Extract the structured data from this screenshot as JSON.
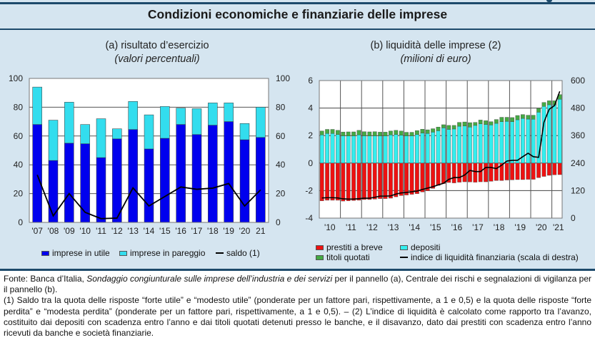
{
  "header": {
    "title": "Condizioni economiche e finanziarie delle imprese"
  },
  "colors": {
    "panel_bg": "#d5e5f0",
    "rule": "#1d4a6b",
    "utile": "#0000ee",
    "pareggio": "#33ddee",
    "prestiti": "#ee1111",
    "depositi": "#33eeee",
    "titoli": "#44aa44",
    "line": "#000000"
  },
  "chart_data": [
    {
      "id": "a",
      "type": "bar",
      "title": "(a) risultato d’esercizio",
      "subtitle": "(valori percentuali)",
      "categories": [
        "'07",
        "'08",
        "'09",
        "'10",
        "'11",
        "'12",
        "'13",
        "'14",
        "'15",
        "'16",
        "'17",
        "'18",
        "'19",
        "'20",
        "21"
      ],
      "stacked": true,
      "series": [
        {
          "name": "imprese in utile",
          "kind": "bar",
          "values": [
            68,
            43,
            55,
            54.6,
            45,
            58,
            64.5,
            51,
            58.4,
            68,
            61,
            67.5,
            70,
            57.4,
            59
          ]
        },
        {
          "name": "imprese in pareggio",
          "kind": "bar",
          "values": [
            26,
            28,
            28.5,
            13.4,
            27,
            7,
            19.5,
            23.7,
            22.1,
            11.4,
            18,
            15.5,
            13,
            11.3,
            21
          ]
        },
        {
          "name": "saldo (1)",
          "kind": "line",
          "values": [
            33,
            4.5,
            20,
            7,
            2.6,
            3,
            24,
            11.4,
            18,
            24.6,
            23,
            23.8,
            27,
            11.4,
            22.6
          ]
        }
      ],
      "ylim": [
        0,
        100
      ],
      "yticks": [
        0,
        20,
        40,
        60,
        80,
        100
      ],
      "y2lim": [
        0,
        100
      ],
      "y2ticks": [
        0,
        20,
        40,
        60,
        80,
        100
      ],
      "grid": true,
      "legend": "bottom",
      "legend_labels": [
        "imprese in utile",
        "imprese in pareggio",
        "saldo (1)"
      ]
    },
    {
      "id": "b",
      "type": "bar",
      "title": "(b) liquidità delle imprese (2)",
      "subtitle": "(milioni di euro)",
      "frequency": "quarterly",
      "period_start": "2010Q1",
      "period_end": "2021Q2",
      "year_labels": [
        "'10",
        "'11",
        "'12",
        "'13",
        "'14",
        "'15",
        "'16",
        "'17",
        "'18",
        "'19",
        "'20",
        "'21"
      ],
      "series": [
        {
          "name": "prestiti a breve",
          "kind": "bar",
          "axis": "left",
          "values": [
            -2.74,
            -2.7,
            -2.7,
            -2.7,
            -2.76,
            -2.74,
            -2.72,
            -2.7,
            -2.65,
            -2.65,
            -2.62,
            -2.58,
            -2.58,
            -2.55,
            -2.45,
            -2.36,
            -2.32,
            -2.27,
            -2.22,
            -2.1,
            -2.01,
            -1.84,
            -1.62,
            -1.49,
            -1.41,
            -1.44,
            -1.39,
            -1.36,
            -1.37,
            -1.39,
            -1.36,
            -1.36,
            -1.32,
            -1.27,
            -1.27,
            -1.23,
            -1.22,
            -1.2,
            -1.2,
            -1.18,
            -1.18,
            -1.06,
            -0.97,
            -0.89,
            -0.85,
            -0.84
          ]
        },
        {
          "name": "depositi",
          "kind": "bar",
          "axis": "left",
          "values": [
            2.05,
            2.15,
            2.15,
            2.08,
            1.98,
            1.97,
            1.97,
            2.05,
            1.98,
            1.97,
            1.98,
            1.97,
            1.97,
            2.05,
            2.08,
            2.03,
            1.98,
            1.98,
            2.08,
            2.18,
            2.15,
            2.25,
            2.35,
            2.56,
            2.45,
            2.48,
            2.68,
            2.7,
            2.62,
            2.74,
            2.86,
            2.81,
            2.77,
            2.89,
            3.01,
            3.03,
            3.01,
            3.15,
            3.25,
            3.2,
            3.19,
            3.7,
            4.12,
            4.24,
            4.24,
            4.64
          ]
        },
        {
          "name": "titoli quotati",
          "kind": "bar",
          "axis": "left",
          "values": [
            0.28,
            0.3,
            0.3,
            0.3,
            0.28,
            0.3,
            0.3,
            0.33,
            0.3,
            0.3,
            0.3,
            0.28,
            0.28,
            0.28,
            0.3,
            0.3,
            0.26,
            0.26,
            0.28,
            0.28,
            0.27,
            0.25,
            0.27,
            0.23,
            0.29,
            0.26,
            0.28,
            0.29,
            0.32,
            0.22,
            0.27,
            0.27,
            0.24,
            0.28,
            0.32,
            0.3,
            0.3,
            0.31,
            0.28,
            0.28,
            0.29,
            0.28,
            0.29,
            0.29,
            0.29,
            0.34
          ]
        },
        {
          "name": "indice di liquidità finanziaria (scala di destra)",
          "kind": "line",
          "axis": "right",
          "values": [
            88,
            89,
            89,
            88,
            84,
            83,
            83,
            85,
            87,
            87,
            91,
            96,
            96,
            97,
            105,
            110,
            112,
            115,
            118,
            125,
            131,
            137,
            145,
            152,
            169,
            177,
            177,
            188,
            208,
            203,
            203,
            221,
            221,
            216,
            231,
            249,
            252,
            252,
            268,
            283,
            268,
            265,
            418,
            475,
            491,
            553
          ]
        }
      ],
      "ylim": [
        -4,
        6
      ],
      "yticks": [
        -4,
        -2,
        0,
        2,
        4,
        6
      ],
      "y2lim": [
        0,
        600
      ],
      "y2ticks": [
        0,
        120,
        240,
        360,
        480,
        600
      ],
      "grid": true,
      "legend": "bottom",
      "legend_labels": [
        "prestiti a breve",
        "depositi",
        "titoli quotati",
        "indice di liquidità finanziaria (scala di destra)"
      ]
    }
  ],
  "footnote": {
    "fonte_prefix": "Fonte: Banca d’Italia, ",
    "fonte_italic": "Sondaggio congiunturale sulle imprese dell’industria e dei servizi",
    "fonte_suffix": " per il pannello (a), Centrale dei rischi e segnalazioni di vigilanza per il pannello (b).",
    "note": "(1) Saldo tra la quota delle risposte “forte utile” e “modesto utile” (ponderate per un fattore pari, rispettivamente, a 1 e 0,5) e la quota delle risposte “forte perdita” e “modesta perdita” (ponderate per un fattore pari, rispettivamente, a 1 e 0,5). – (2) L’indice di liquidità è calcolato come rapporto tra l’avanzo, costituito dai depositi con scadenza entro l’anno e dai titoli quotati detenuti presso le banche, e il disavanzo, dato dai prestiti con scadenza entro l’anno ricevuti da banche e società finanziarie."
  }
}
